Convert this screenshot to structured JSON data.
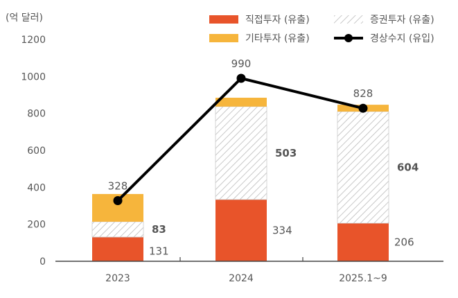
{
  "chart_data": {
    "type": "bar",
    "stacked": true,
    "unit_label": "(억 달러)",
    "categories": [
      "2023",
      "2024",
      "2025.1~9"
    ],
    "ylim": [
      0,
      1200
    ],
    "yticks": [
      0,
      200,
      400,
      600,
      800,
      1000,
      1200
    ],
    "grid": false,
    "legend_position": "top-right",
    "series": [
      {
        "name": "직접투자 (유출)",
        "values": [
          131,
          334,
          206
        ],
        "color": "#E8542A",
        "pattern": "solid",
        "labels": [
          "131",
          "334",
          "206"
        ]
      },
      {
        "name": "증권투자 (유출)",
        "values": [
          83,
          503,
          604
        ],
        "color": "#BBBBBB",
        "pattern": "hatched",
        "labels": [
          "83",
          "503",
          "604"
        ]
      },
      {
        "name": "기타투자 (유출)",
        "values": [
          150,
          48,
          37
        ],
        "color": "#F6B53C",
        "pattern": "solid"
      }
    ],
    "line": {
      "name": "경상수지 (유입)",
      "type": "line",
      "values": [
        328,
        990,
        828
      ],
      "color": "#000000",
      "labels": [
        "328",
        "990",
        "828"
      ]
    }
  }
}
